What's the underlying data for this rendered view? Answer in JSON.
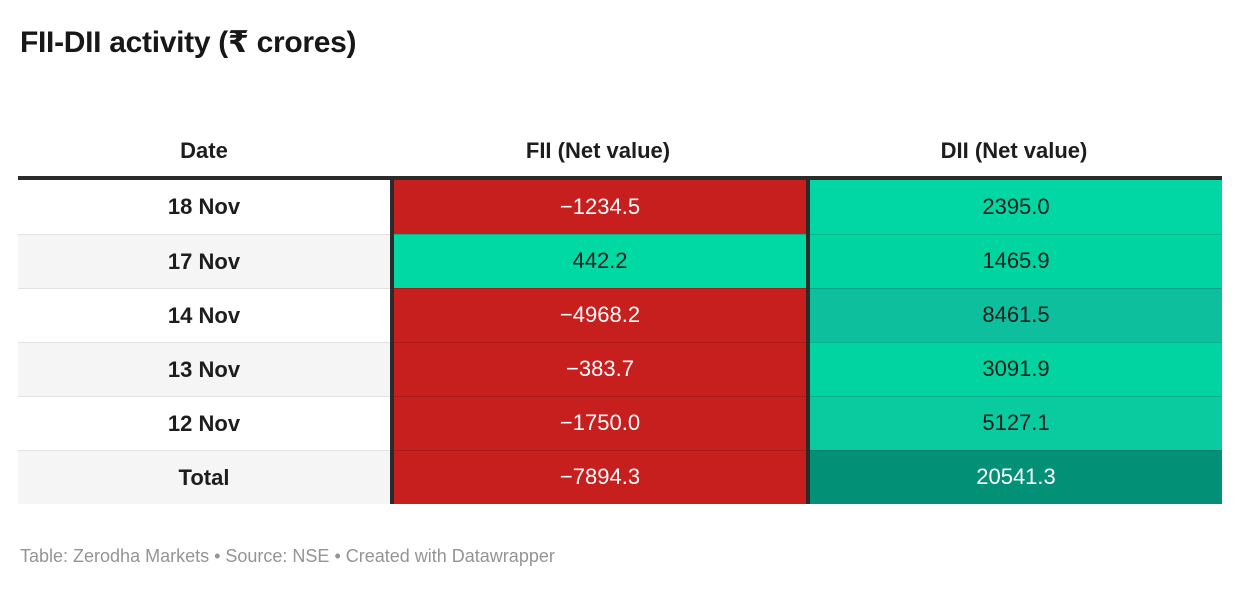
{
  "title": "FII-DII activity (₹ crores)",
  "footer": "Table: Zerodha Markets • Source: NSE • Created with Datawrapper",
  "colors": {
    "negative_red": "#c71e1e",
    "total_dii_teal": "#029176",
    "header_rule_dark": "#2b2b2b",
    "row_stripe_gray": "#f5f5f5"
  },
  "table": {
    "columns": [
      "Date",
      "FII (Net value)",
      "DII (Net value)"
    ],
    "rows": [
      {
        "date": "18 Nov",
        "fii": "−1234.5",
        "dii": "2395.0",
        "date_bg": "#ffffff",
        "fii_bg": "#c71e1e",
        "fii_color": "#ffffff",
        "dii_bg": "#00d7a4",
        "dii_color": "#1d1d1d"
      },
      {
        "date": "17 Nov",
        "fii": "442.2",
        "dii": "1465.9",
        "date_bg": "#f5f5f5",
        "fii_bg": "#00d9a3",
        "fii_color": "#1d1d1d",
        "dii_bg": "#00d5a2",
        "dii_color": "#1d1d1d"
      },
      {
        "date": "14 Nov",
        "fii": "−4968.2",
        "dii": "8461.5",
        "date_bg": "#ffffff",
        "fii_bg": "#c71e1e",
        "fii_color": "#ffffff",
        "dii_bg": "#0dbf9d",
        "dii_color": "#1d1d1d"
      },
      {
        "date": "13 Nov",
        "fii": "−383.7",
        "dii": "3091.9",
        "date_bg": "#f5f5f5",
        "fii_bg": "#c71e1e",
        "fii_color": "#ffffff",
        "dii_bg": "#02d4a1",
        "dii_color": "#1d1d1d"
      },
      {
        "date": "12 Nov",
        "fii": "−1750.0",
        "dii": "5127.1",
        "date_bg": "#ffffff",
        "fii_bg": "#c71e1e",
        "fii_color": "#ffffff",
        "dii_bg": "#09cb9f",
        "dii_color": "#1d1d1d"
      },
      {
        "date": "Total",
        "fii": "−7894.3",
        "dii": "20541.3",
        "date_bg": "#f5f5f5",
        "fii_bg": "#c71e1e",
        "fii_color": "#ffffff",
        "dii_bg": "#029176",
        "dii_color": "#ffffff"
      }
    ]
  },
  "chart_data": {
    "type": "table",
    "title": "FII-DII activity (₹ crores)",
    "columns": [
      "Date",
      "FII (Net value)",
      "DII (Net value)"
    ],
    "rows": [
      [
        "18 Nov",
        -1234.5,
        2395.0
      ],
      [
        "17 Nov",
        442.2,
        1465.9
      ],
      [
        "14 Nov",
        -4968.2,
        8461.5
      ],
      [
        "13 Nov",
        -383.7,
        3091.9
      ],
      [
        "12 Nov",
        -1750.0,
        5127.1
      ],
      [
        "Total",
        -7894.3,
        20541.3
      ]
    ],
    "notes": "Cell background heatmap: negative values solid red; positive values green scale, darker teal for larger magnitude",
    "source": "NSE",
    "credit": "Zerodha Markets / Datawrapper"
  }
}
